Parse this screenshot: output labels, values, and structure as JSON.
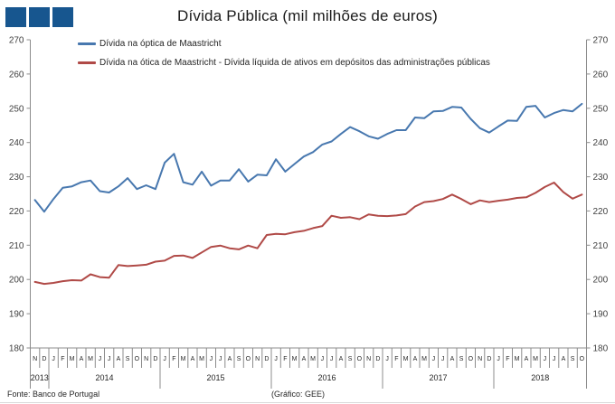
{
  "header": {
    "title": "Dívida Pública (mil milhões de euros)"
  },
  "colors": {
    "logo": "#17568f",
    "axis": "#8c8c8c",
    "text": "#404040",
    "series_blue": "#4878af",
    "series_red": "#b04a47"
  },
  "footer": {
    "source": "Fonte: Banco de Portugal",
    "credit": "(Gráfico: GEE)"
  },
  "chart_data": {
    "type": "line",
    "title": "Dívida Pública (mil milhões de euros)",
    "xlabel": "",
    "ylabel": "",
    "ylim": [
      180,
      270
    ],
    "ytick_step": 10,
    "grid": false,
    "legend_position": "top-left",
    "x_groups": [
      {
        "year": "2013",
        "months": [
          "N",
          "D"
        ]
      },
      {
        "year": "2014",
        "months": [
          "J",
          "F",
          "M",
          "A",
          "M",
          "J",
          "J",
          "A",
          "S",
          "O",
          "N",
          "D"
        ]
      },
      {
        "year": "2015",
        "months": [
          "J",
          "F",
          "M",
          "A",
          "M",
          "J",
          "J",
          "A",
          "S",
          "O",
          "N",
          "D"
        ]
      },
      {
        "year": "2016",
        "months": [
          "J",
          "F",
          "M",
          "A",
          "M",
          "J",
          "J",
          "A",
          "S",
          "O",
          "N",
          "D"
        ]
      },
      {
        "year": "2017",
        "months": [
          "J",
          "F",
          "M",
          "A",
          "M",
          "J",
          "J",
          "A",
          "S",
          "O",
          "N",
          "D"
        ]
      },
      {
        "year": "2018",
        "months": [
          "J",
          "F",
          "M",
          "A",
          "M",
          "J",
          "J",
          "A",
          "S",
          "O"
        ]
      }
    ],
    "series": [
      {
        "name": "Dívida na óptica de Maastricht",
        "color": "#4878af",
        "values": [
          223.2,
          219.8,
          223.5,
          226.8,
          227.2,
          228.4,
          228.9,
          225.8,
          225.4,
          227.2,
          229.6,
          226.4,
          227.5,
          226.4,
          234.1,
          236.7,
          228.4,
          227.7,
          231.5,
          227.4,
          228.9,
          228.9,
          232.2,
          228.6,
          230.6,
          230.4,
          235.1,
          231.5,
          233.7,
          235.9,
          237.2,
          239.4,
          240.3,
          242.5,
          244.5,
          243.3,
          241.8,
          241.1,
          242.5,
          243.6,
          243.6,
          247.3,
          247.1,
          249.1,
          249.2,
          250.4,
          250.2,
          246.9,
          244.2,
          242.9,
          244.7,
          246.4,
          246.3,
          250.4,
          250.7,
          247.3,
          248.6,
          249.5,
          249.1,
          251.3
        ]
      },
      {
        "name": "Dívida na ótica de Maastricht - Dívida líquida de ativos em depósitos das administrações públicas",
        "color": "#b04a47",
        "values": [
          199.3,
          198.7,
          199.0,
          199.5,
          199.8,
          199.7,
          201.5,
          200.7,
          200.5,
          204.2,
          203.9,
          204.1,
          204.3,
          205.2,
          205.5,
          206.9,
          207.0,
          206.3,
          207.9,
          209.5,
          209.9,
          209.1,
          208.8,
          209.9,
          209.1,
          213.0,
          213.3,
          213.2,
          213.8,
          214.2,
          215.0,
          215.6,
          218.6,
          218.0,
          218.2,
          217.6,
          219.0,
          218.6,
          218.5,
          218.7,
          219.1,
          221.3,
          222.6,
          222.9,
          223.5,
          224.8,
          223.5,
          222.0,
          223.1,
          222.6,
          223.0,
          223.3,
          223.8,
          224.0,
          225.3,
          227.0,
          228.3,
          225.5,
          223.6,
          224.8
        ]
      }
    ]
  }
}
